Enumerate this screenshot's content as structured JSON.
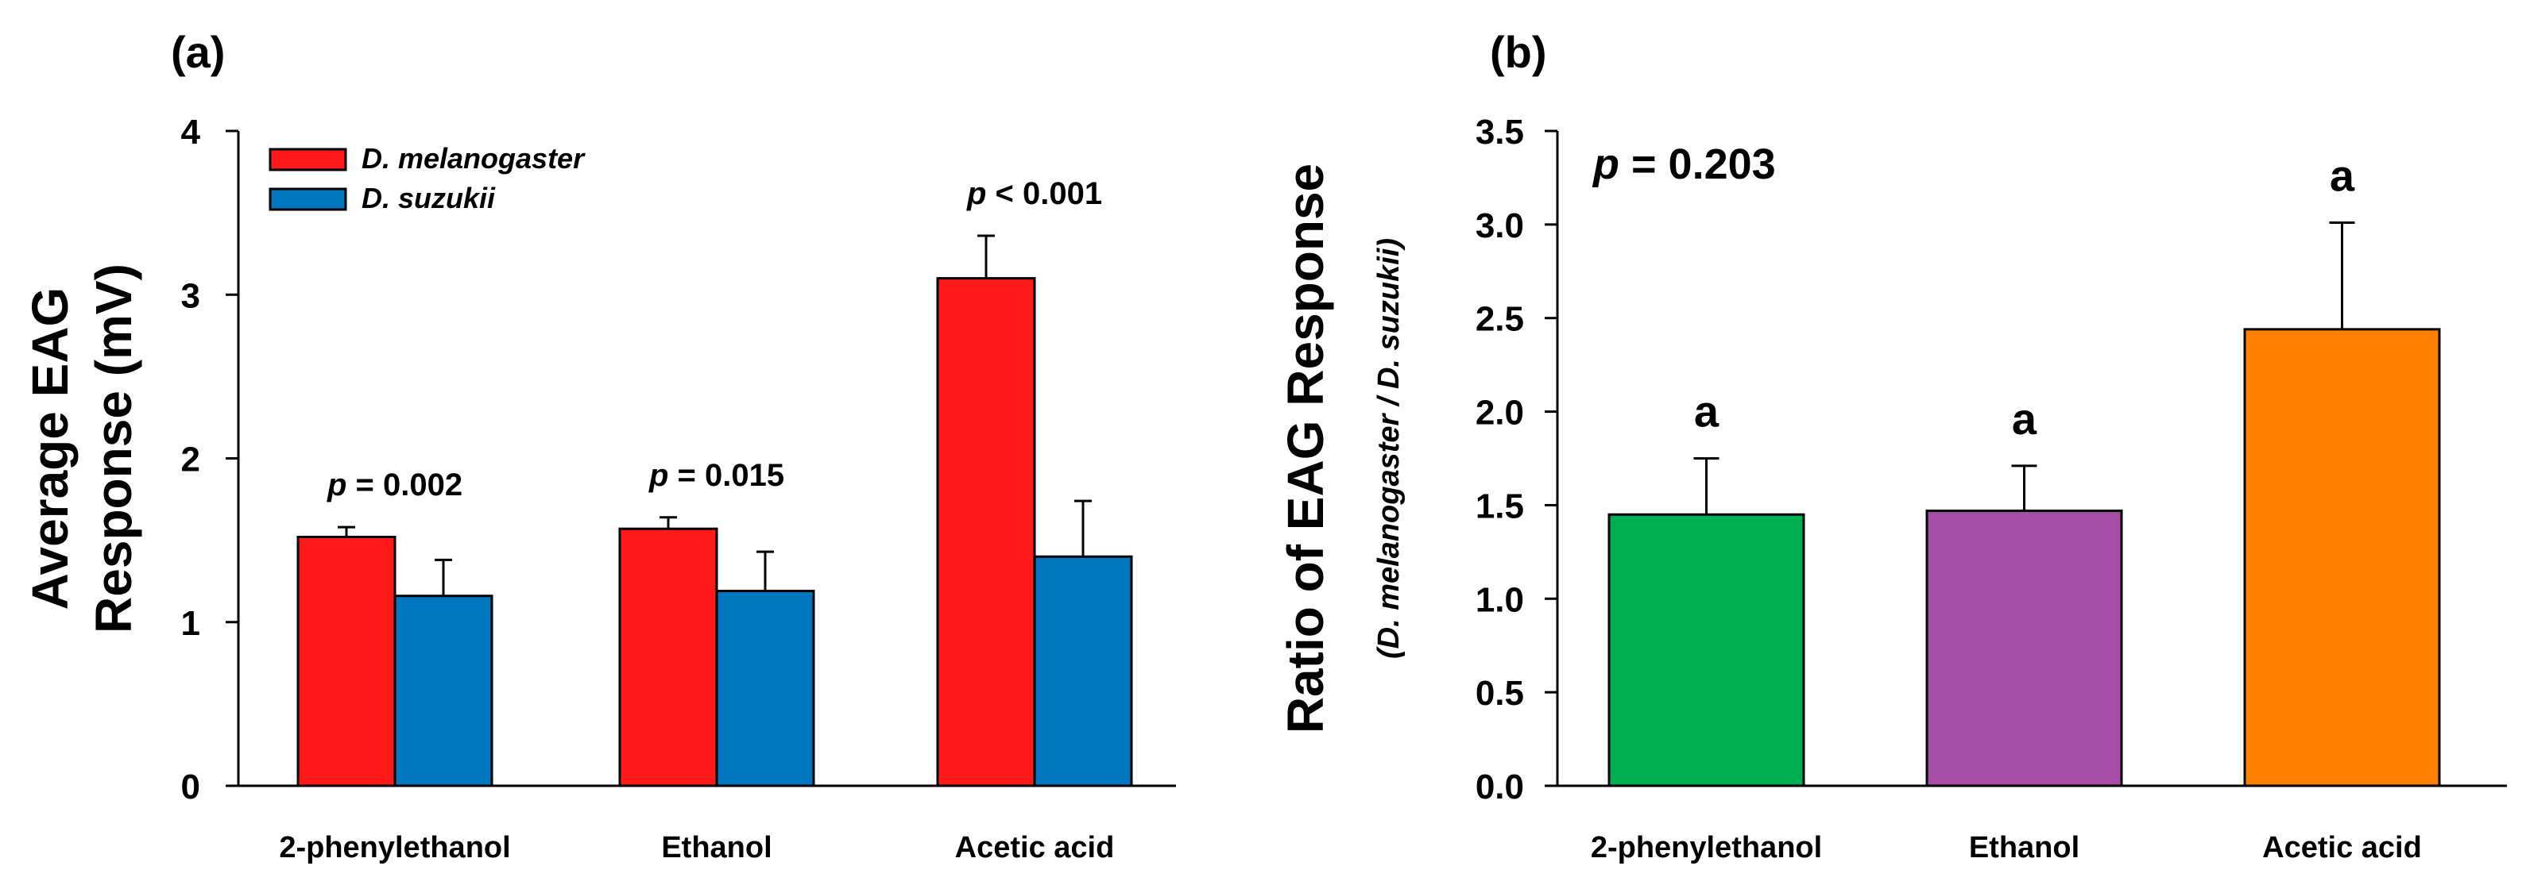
{
  "chart_data": [
    {
      "panel_label": "(a)",
      "type": "bar",
      "categories": [
        "2-phenylethanol",
        "Ethanol",
        "Acetic acid"
      ],
      "series": [
        {
          "name": "D. melanogaster",
          "color": "#ff1a1a",
          "values": [
            1.52,
            1.57,
            3.1
          ],
          "errors": [
            0.06,
            0.07,
            0.26
          ]
        },
        {
          "name": "D. suzukii",
          "color": "#0077be",
          "values": [
            1.16,
            1.19,
            1.4
          ],
          "errors": [
            0.22,
            0.24,
            0.34
          ]
        }
      ],
      "ylabel_line1": "Average EAG",
      "ylabel_line2": "Response (mV)",
      "ylim": [
        0,
        4
      ],
      "yticks": [
        "0",
        "1",
        "2",
        "3",
        "4"
      ],
      "annotations": [
        {
          "category": "2-phenylethanol",
          "p": "p",
          "rest": " = 0.002"
        },
        {
          "category": "Ethanol",
          "p": "p",
          "rest": " = 0.015"
        },
        {
          "category": "Acetic acid",
          "p": "p",
          "rest": " < 0.001"
        }
      ],
      "legend_position": "top-left"
    },
    {
      "panel_label": "(b)",
      "type": "bar",
      "categories": [
        "2-phenylethanol",
        "Ethanol",
        "Acetic acid"
      ],
      "values": [
        1.45,
        1.47,
        2.44
      ],
      "errors": [
        0.3,
        0.24,
        0.57
      ],
      "colors": [
        "#00b050",
        "#a64ea6",
        "#ff8000"
      ],
      "significance": [
        "a",
        "a",
        "a"
      ],
      "ylabel": "Ratio of EAG Response",
      "ylabel_sub": "(D. melanogaster / D. suzukii)",
      "ylim": [
        0,
        3.5
      ],
      "yticks": [
        "0.0",
        "0.5",
        "1.0",
        "1.5",
        "2.0",
        "2.5",
        "3.0",
        "3.5"
      ],
      "p_label": "p",
      "p_rest": " = 0.203"
    }
  ]
}
